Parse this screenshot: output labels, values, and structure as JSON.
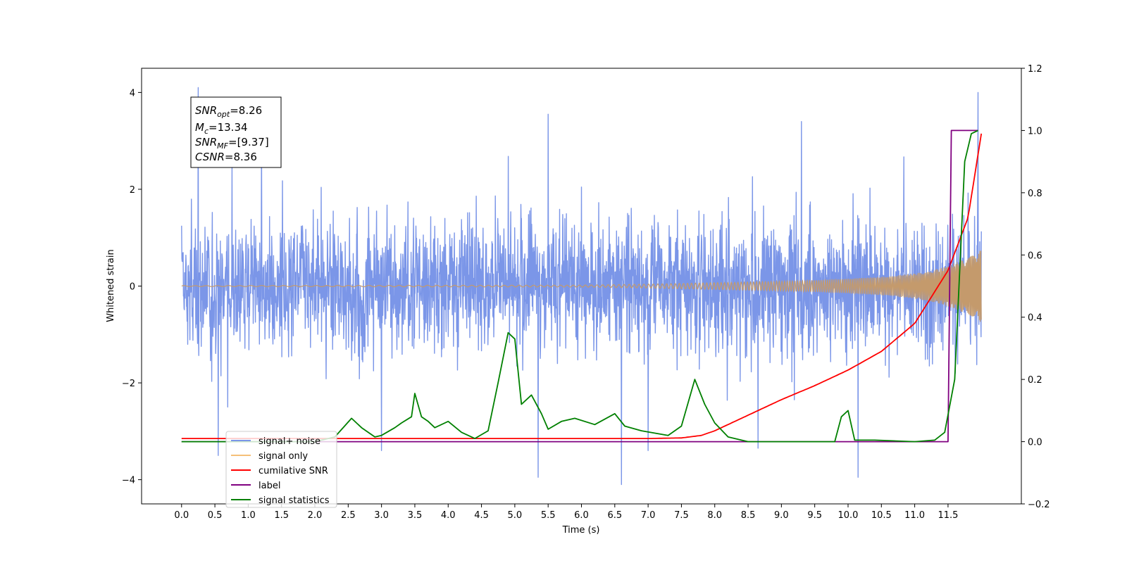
{
  "chart_data": {
    "type": "line",
    "title": "",
    "xlabel": "Time (s)",
    "ylabel": "Whitened strain",
    "xlim": [
      -0.6,
      12.6
    ],
    "ylim": [
      -4.5,
      4.5
    ],
    "y2lim": [
      -0.2,
      1.2
    ],
    "x_ticks": [
      "0.0",
      "0.5",
      "1.0",
      "1.5",
      "2.0",
      "2.5",
      "3.0",
      "3.5",
      "4.0",
      "4.5",
      "5.0",
      "5.5",
      "6.0",
      "6.5",
      "7.0",
      "7.5",
      "8.0",
      "8.5",
      "9.0",
      "9.5",
      "10.0",
      "10.5",
      "11.0",
      "11.5"
    ],
    "y_ticks": [
      "4",
      "2",
      "0",
      "−2",
      "−4"
    ],
    "y2_ticks": [
      "1.2",
      "1.0",
      "0.8",
      "0.6",
      "0.4",
      "0.2",
      "0.0",
      "−0.2"
    ],
    "info_box": {
      "snr_opt": {
        "base": "SNR",
        "sub": "opt",
        "value": "=8.26"
      },
      "mc": {
        "base": "M",
        "sub": "c",
        "value": "=13.34"
      },
      "snr_mf": {
        "base": "SNR",
        "sub": "MF",
        "value": "=[9.37]"
      },
      "csnr": {
        "base": "CSNR",
        "sub": "",
        "value": "=8.36"
      }
    },
    "legend": {
      "location": "lower left",
      "entries": [
        {
          "label": "signal+ noise",
          "color": "#7b96e8"
        },
        {
          "label": "signal only",
          "color": "#f5c078"
        },
        {
          "label": "cumilative SNR",
          "color": "#ff0000"
        },
        {
          "label": "label",
          "color": "#800080"
        },
        {
          "label": "signal statistics",
          "color": "#008000"
        }
      ]
    },
    "series": [
      {
        "name": "signal+ noise",
        "axis": "left",
        "color": "#7b96e8",
        "x_range": [
          0.0,
          12.0
        ],
        "envelope_upper": [
          1.5,
          2.5,
          2.5,
          2.6,
          2.4,
          2.7,
          2.5,
          2.6,
          2.5,
          2.6,
          2.7,
          2.5,
          2.4,
          2.6,
          2.5,
          2.8,
          2.6,
          2.5,
          2.7,
          2.6,
          2.5,
          2.6,
          2.7,
          2.8,
          3.0
        ],
        "envelope_lower": [
          -2.0,
          -2.5,
          -2.5,
          -2.6,
          -2.5,
          -2.6,
          -2.5,
          -2.5,
          -2.6,
          -2.5,
          -2.6,
          -2.5,
          -2.5,
          -2.6,
          -2.5,
          -2.6,
          -2.5,
          -2.6,
          -2.5,
          -2.6,
          -2.5,
          -2.6,
          -2.5,
          -2.6,
          -2.7
        ],
        "spikes": [
          [
            0.25,
            4.1
          ],
          [
            5.5,
            3.55
          ],
          [
            6.6,
            -4.1
          ],
          [
            5.35,
            -3.95
          ],
          [
            7.0,
            -3.4
          ],
          [
            10.15,
            -3.95
          ],
          [
            11.95,
            4.0
          ],
          [
            0.55,
            -3.5
          ],
          [
            3.0,
            -3.4
          ],
          [
            8.65,
            -3.35
          ],
          [
            1.2,
            3.0
          ],
          [
            9.3,
            3.4
          ]
        ]
      },
      {
        "name": "signal only",
        "axis": "left",
        "color": "#f5c078",
        "x": [
          0,
          6,
          7,
          8,
          9,
          9.5,
          10,
          10.5,
          11,
          11.25,
          11.5,
          11.75,
          12
        ],
        "amplitude": [
          0.01,
          0.02,
          0.04,
          0.07,
          0.1,
          0.12,
          0.15,
          0.19,
          0.26,
          0.32,
          0.42,
          0.56,
          0.75
        ]
      },
      {
        "name": "cumilative SNR",
        "axis": "right",
        "color": "#ff0000",
        "x": [
          0,
          7,
          7.5,
          7.8,
          8.0,
          8.5,
          9.0,
          9.5,
          10.0,
          10.5,
          11.0,
          11.5,
          11.8,
          12.0
        ],
        "values": [
          0.01,
          0.01,
          0.012,
          0.02,
          0.035,
          0.085,
          0.135,
          0.18,
          0.23,
          0.29,
          0.38,
          0.55,
          0.72,
          0.99
        ]
      },
      {
        "name": "label",
        "axis": "right",
        "color": "#800080",
        "x": [
          0,
          11.5,
          11.55,
          11.95
        ],
        "values": [
          0,
          0,
          1.0,
          1.0
        ]
      },
      {
        "name": "signal statistics",
        "axis": "right",
        "color": "#008000",
        "x": [
          0,
          2.0,
          2.3,
          2.55,
          2.7,
          2.9,
          3.0,
          3.2,
          3.3,
          3.45,
          3.5,
          3.6,
          3.7,
          3.8,
          4.0,
          4.2,
          4.4,
          4.6,
          4.75,
          4.9,
          5.0,
          5.1,
          5.25,
          5.4,
          5.5,
          5.7,
          5.9,
          6.2,
          6.5,
          6.65,
          6.9,
          7.3,
          7.5,
          7.7,
          7.85,
          8.0,
          8.2,
          8.5,
          9.0,
          9.5,
          9.8,
          9.9,
          10.0,
          10.1,
          10.4,
          11.0,
          11.3,
          11.45,
          11.6,
          11.75,
          11.85,
          11.95
        ],
        "values": [
          0,
          0,
          0.015,
          0.075,
          0.045,
          0.015,
          0.02,
          0.045,
          0.06,
          0.08,
          0.155,
          0.08,
          0.065,
          0.045,
          0.065,
          0.03,
          0.01,
          0.035,
          0.19,
          0.35,
          0.33,
          0.12,
          0.15,
          0.09,
          0.04,
          0.065,
          0.075,
          0.055,
          0.09,
          0.05,
          0.035,
          0.02,
          0.05,
          0.2,
          0.12,
          0.06,
          0.015,
          0.0,
          0.0,
          0.0,
          0.0,
          0.08,
          0.1,
          0.005,
          0.005,
          0.0,
          0.005,
          0.03,
          0.2,
          0.9,
          0.99,
          1.0
        ]
      }
    ]
  }
}
